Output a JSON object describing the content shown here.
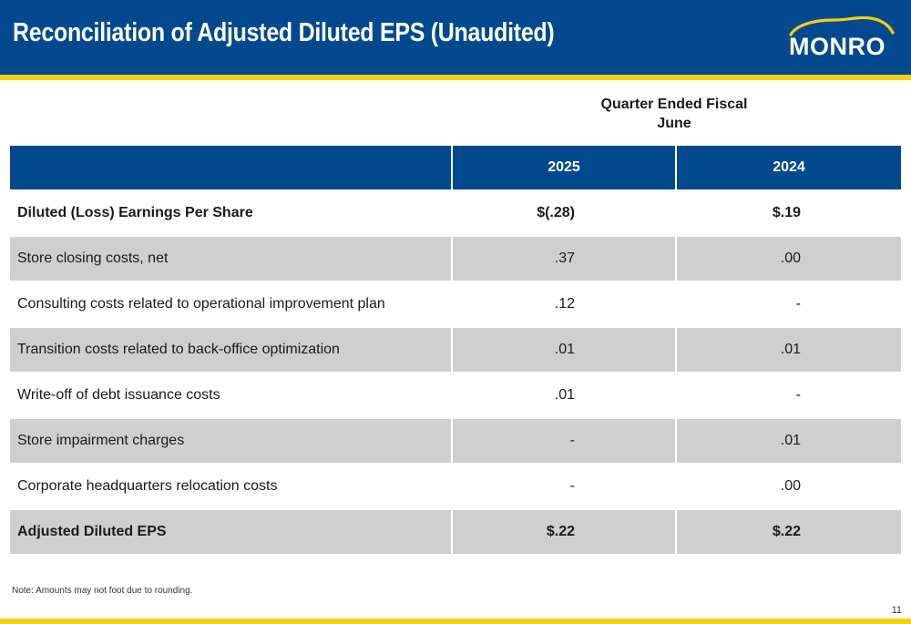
{
  "slide": {
    "title": "Reconciliation of Adjusted Diluted EPS (Unaudited)",
    "logo_text": "MONRO",
    "period_header_line1": "Quarter Ended Fiscal",
    "period_header_line2": "June",
    "note": "Note: Amounts may not foot due to rounding.",
    "page_number": "11"
  },
  "colors": {
    "brand_blue": "#00498f",
    "brand_yellow": "#f4cf12",
    "row_shade": "#cfcfcf"
  },
  "table": {
    "columns": [
      "",
      "2025",
      "2024"
    ],
    "rows": [
      {
        "label": "Diluted (Loss) Earnings Per Share",
        "y2025": "$(.28)",
        "y2024": "$.19"
      },
      {
        "label": "Store closing costs, net",
        "y2025": ".37",
        "y2024": ".00"
      },
      {
        "label": "Consulting costs related to operational improvement plan",
        "y2025": ".12",
        "y2024": "-"
      },
      {
        "label": "Transition costs related to back-office optimization",
        "y2025": ".01",
        "y2024": ".01"
      },
      {
        "label": "Write-off of debt issuance costs",
        "y2025": ".01",
        "y2024": "-"
      },
      {
        "label": "Store impairment charges",
        "y2025": "-",
        "y2024": ".01"
      },
      {
        "label": "Corporate headquarters relocation costs",
        "y2025": "-",
        "y2024": ".00"
      },
      {
        "label": "Adjusted Diluted EPS",
        "y2025": "$.22",
        "y2024": "$.22"
      }
    ]
  }
}
